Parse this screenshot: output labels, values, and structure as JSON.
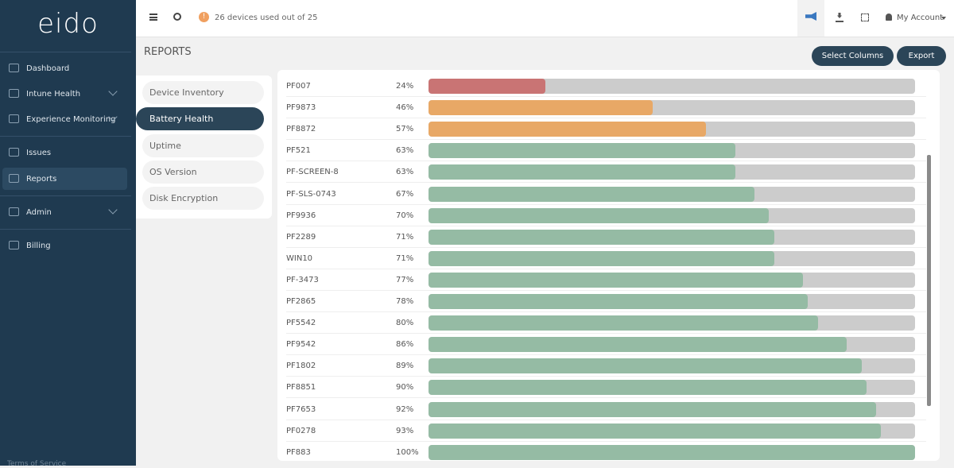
{
  "brand": "eido",
  "sidebar": {
    "items": [
      "Dashboard",
      "Intune Health",
      "Experience Monitoring",
      "Issues",
      "Reports",
      "Admin",
      "Billing"
    ],
    "footer": "Terms of Service"
  },
  "topbar": {
    "notice": "26 devices used out of 25",
    "account": "My Account"
  },
  "page": {
    "title": "REPORTS",
    "buttons": [
      "Select Columns",
      "Export"
    ],
    "tabs": [
      "Device Inventory",
      "Battery Health",
      "Uptime",
      "OS Version",
      "Disk Encryption"
    ],
    "active_tab": 1
  },
  "rows": [
    {
      "name": "PF007",
      "value": 24,
      "label": "24%",
      "color": "#c97474"
    },
    {
      "name": "PF9873",
      "value": 46,
      "label": "46%",
      "color": "#e8a866"
    },
    {
      "name": "PF8872",
      "value": 57,
      "label": "57%",
      "color": "#e8a866"
    },
    {
      "name": "PF521",
      "value": 63,
      "label": "63%",
      "color": "#95bba4"
    },
    {
      "name": "PF-SCREEN-8",
      "value": 63,
      "label": "63%",
      "color": "#95bba4"
    },
    {
      "name": "PF-SLS-0743",
      "value": 67,
      "label": "67%",
      "color": "#95bba4"
    },
    {
      "name": "PF9936",
      "value": 70,
      "label": "70%",
      "color": "#95bba4"
    },
    {
      "name": "PF2289",
      "value": 71,
      "label": "71%",
      "color": "#95bba4"
    },
    {
      "name": "WIN10",
      "value": 71,
      "label": "71%",
      "color": "#95bba4"
    },
    {
      "name": "PF-3473",
      "value": 77,
      "label": "77%",
      "color": "#95bba4"
    },
    {
      "name": "PF2865",
      "value": 78,
      "label": "78%",
      "color": "#95bba4"
    },
    {
      "name": "PF5542",
      "value": 80,
      "label": "80%",
      "color": "#95bba4"
    },
    {
      "name": "PF9542",
      "value": 86,
      "label": "86%",
      "color": "#95bba4"
    },
    {
      "name": "PF1802",
      "value": 89,
      "label": "89%",
      "color": "#95bba4"
    },
    {
      "name": "PF8851",
      "value": 90,
      "label": "90%",
      "color": "#95bba4"
    },
    {
      "name": "PF7653",
      "value": 92,
      "label": "92%",
      "color": "#95bba4"
    },
    {
      "name": "PF0278",
      "value": 93,
      "label": "93%",
      "color": "#95bba4"
    },
    {
      "name": "PF883",
      "value": 100,
      "label": "100%",
      "color": "#95bba4"
    }
  ]
}
